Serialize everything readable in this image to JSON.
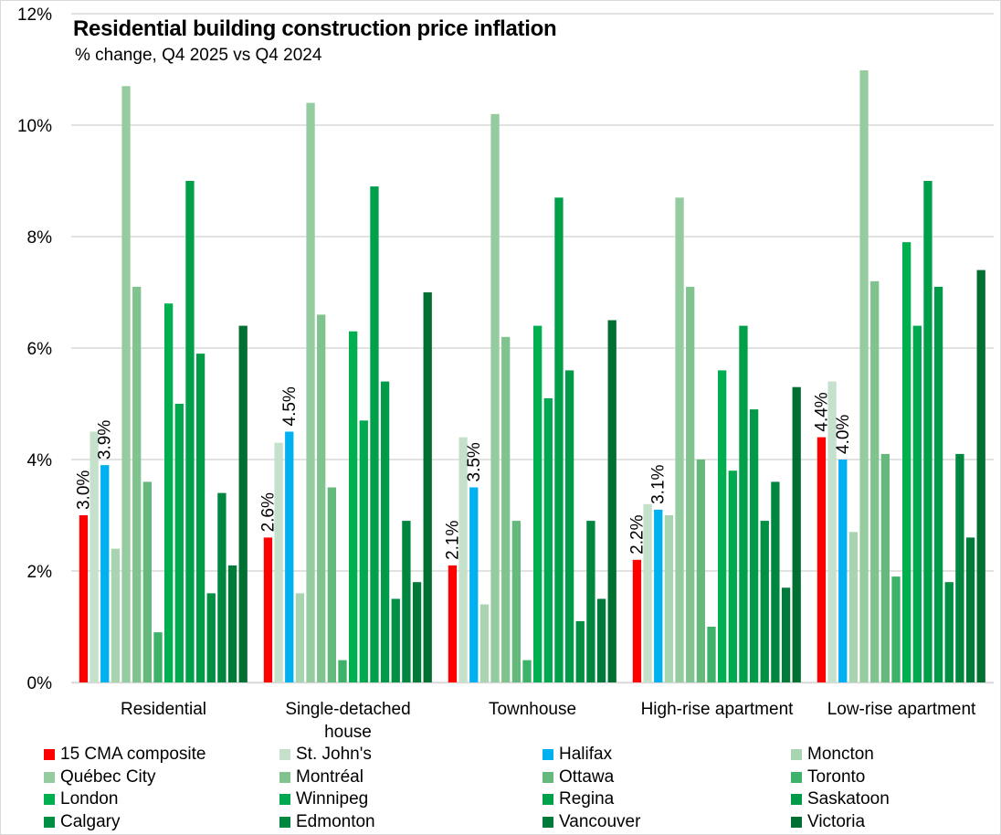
{
  "chart_data": {
    "type": "bar",
    "title": "Residential building construction price inflation",
    "subtitle": "% change, Q4 2025 vs Q4 2024",
    "xlabel": "",
    "ylabel": "",
    "ylim": [
      0,
      12
    ],
    "yticks": [
      0,
      2,
      4,
      6,
      8,
      10,
      12
    ],
    "ytick_labels": [
      "0%",
      "2%",
      "4%",
      "6%",
      "8%",
      "10%",
      "12%"
    ],
    "grid": true,
    "legend_position": "bottom",
    "categories": [
      "Residential",
      "Single-detached house",
      "Townhouse",
      "High-rise apartment",
      "Low-rise apartment"
    ],
    "category_label_lines": [
      [
        "Residential"
      ],
      [
        "Single-detached",
        "house"
      ],
      [
        "Townhouse"
      ],
      [
        "High-rise apartment"
      ],
      [
        "Low-rise apartment"
      ]
    ],
    "series": [
      {
        "name": "15 CMA composite",
        "color": "#ff0000",
        "values": [
          3.0,
          2.6,
          2.1,
          2.2,
          4.4
        ],
        "labels": [
          "3.0%",
          "2.6%",
          "2.1%",
          "2.2%",
          "4.4%"
        ]
      },
      {
        "name": "St. John's",
        "color": "#c5e0cb",
        "values": [
          4.5,
          4.3,
          4.4,
          3.2,
          5.4
        ]
      },
      {
        "name": "Halifax",
        "color": "#00b0f0",
        "values": [
          3.9,
          4.5,
          3.5,
          3.1,
          4.0
        ],
        "labels": [
          "3.9%",
          "4.5%",
          "3.5%",
          "3.1%",
          "4.0%"
        ]
      },
      {
        "name": "Moncton",
        "color": "#a9d4b2",
        "values": [
          2.4,
          1.6,
          1.4,
          3.0,
          2.7
        ]
      },
      {
        "name": "Québec City",
        "color": "#94cca0",
        "values": [
          10.7,
          10.4,
          10.2,
          8.7,
          11.3
        ]
      },
      {
        "name": "Montréal",
        "color": "#80c38f",
        "values": [
          7.1,
          6.6,
          6.2,
          7.1,
          7.2
        ]
      },
      {
        "name": "Ottawa",
        "color": "#66b97c",
        "values": [
          3.6,
          3.5,
          2.9,
          4.0,
          4.1
        ]
      },
      {
        "name": "Toronto",
        "color": "#3fb26a",
        "values": [
          0.9,
          0.4,
          0.4,
          1.0,
          1.9
        ]
      },
      {
        "name": "London",
        "color": "#00b050",
        "values": [
          6.8,
          6.3,
          6.4,
          5.6,
          7.9
        ]
      },
      {
        "name": "Winnipeg",
        "color": "#00a94f",
        "values": [
          5.0,
          4.7,
          5.1,
          3.8,
          6.4
        ]
      },
      {
        "name": "Regina",
        "color": "#00a04a",
        "values": [
          9.0,
          8.9,
          8.7,
          6.4,
          9.0
        ]
      },
      {
        "name": "Saskatoon",
        "color": "#009a48",
        "values": [
          5.9,
          5.4,
          5.6,
          4.9,
          7.1
        ]
      },
      {
        "name": "Calgary",
        "color": "#008f43",
        "values": [
          1.6,
          1.5,
          1.1,
          2.9,
          1.8
        ]
      },
      {
        "name": "Edmonton",
        "color": "#00863e",
        "values": [
          3.4,
          2.9,
          2.9,
          3.6,
          4.1
        ]
      },
      {
        "name": "Vancouver",
        "color": "#007a38",
        "values": [
          2.1,
          1.8,
          1.5,
          1.7,
          2.6
        ]
      },
      {
        "name": "Victoria",
        "color": "#006f32",
        "values": [
          6.4,
          7.0,
          6.5,
          5.3,
          7.4
        ]
      }
    ],
    "legend_order": [
      "15 CMA composite",
      "St. John's",
      "Halifax",
      "Moncton",
      "Québec City",
      "Montréal",
      "Ottawa",
      "Toronto",
      "London",
      "Winnipeg",
      "Regina",
      "Saskatoon",
      "Calgary",
      "Edmonton",
      "Vancouver",
      "Victoria"
    ]
  }
}
